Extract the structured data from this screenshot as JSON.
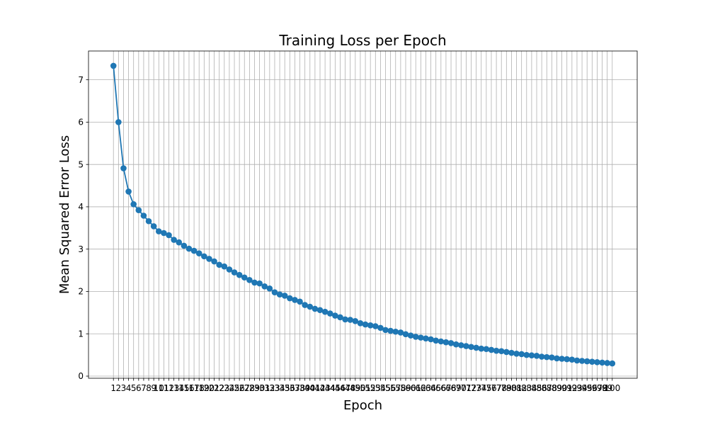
{
  "chart_data": {
    "type": "line",
    "title": "Training Loss per Epoch",
    "xlabel": "Epoch",
    "ylabel": "Mean Squared Error Loss",
    "x": [
      1,
      2,
      3,
      4,
      5,
      6,
      7,
      8,
      9,
      10,
      11,
      12,
      13,
      14,
      15,
      16,
      17,
      18,
      19,
      20,
      21,
      22,
      23,
      24,
      25,
      26,
      27,
      28,
      29,
      30,
      31,
      32,
      33,
      34,
      35,
      36,
      37,
      38,
      39,
      40,
      41,
      42,
      43,
      44,
      45,
      46,
      47,
      48,
      49,
      50,
      51,
      52,
      53,
      54,
      55,
      56,
      57,
      58,
      59,
      60,
      61,
      62,
      63,
      64,
      65,
      66,
      67,
      68,
      69,
      70,
      71,
      72,
      73,
      74,
      75,
      76,
      77,
      78,
      79,
      80,
      81,
      82,
      83,
      84,
      85,
      86,
      87,
      88,
      89,
      90,
      91,
      92,
      93,
      94,
      95,
      96,
      97,
      98,
      99,
      100
    ],
    "series": [
      {
        "values": [
          7.33,
          6.0,
          4.91,
          4.36,
          4.06,
          3.92,
          3.79,
          3.66,
          3.54,
          3.42,
          3.38,
          3.33,
          3.22,
          3.16,
          3.08,
          3.01,
          2.96,
          2.9,
          2.83,
          2.77,
          2.71,
          2.63,
          2.59,
          2.52,
          2.45,
          2.39,
          2.33,
          2.27,
          2.21,
          2.19,
          2.12,
          2.07,
          1.98,
          1.93,
          1.9,
          1.84,
          1.8,
          1.76,
          1.68,
          1.64,
          1.59,
          1.56,
          1.52,
          1.48,
          1.43,
          1.39,
          1.34,
          1.33,
          1.3,
          1.25,
          1.22,
          1.2,
          1.18,
          1.14,
          1.09,
          1.07,
          1.05,
          1.03,
          0.99,
          0.96,
          0.93,
          0.91,
          0.89,
          0.87,
          0.84,
          0.82,
          0.8,
          0.78,
          0.75,
          0.73,
          0.71,
          0.69,
          0.67,
          0.65,
          0.64,
          0.62,
          0.6,
          0.59,
          0.57,
          0.55,
          0.53,
          0.52,
          0.5,
          0.49,
          0.48,
          0.46,
          0.45,
          0.44,
          0.42,
          0.41,
          0.4,
          0.39,
          0.37,
          0.36,
          0.35,
          0.34,
          0.33,
          0.32,
          0.31,
          0.3
        ]
      }
    ],
    "xlim": [
      -3.95,
      104.95
    ],
    "ylim": [
      -0.05,
      7.68
    ],
    "yticks": [
      0,
      1,
      2,
      3,
      4,
      5,
      6,
      7
    ],
    "grid": true,
    "legend": "none",
    "colors": {
      "line": "#1f77b4",
      "marker": "#1f77b4",
      "grid": "#b0b0b0",
      "axes": "#000000"
    }
  }
}
